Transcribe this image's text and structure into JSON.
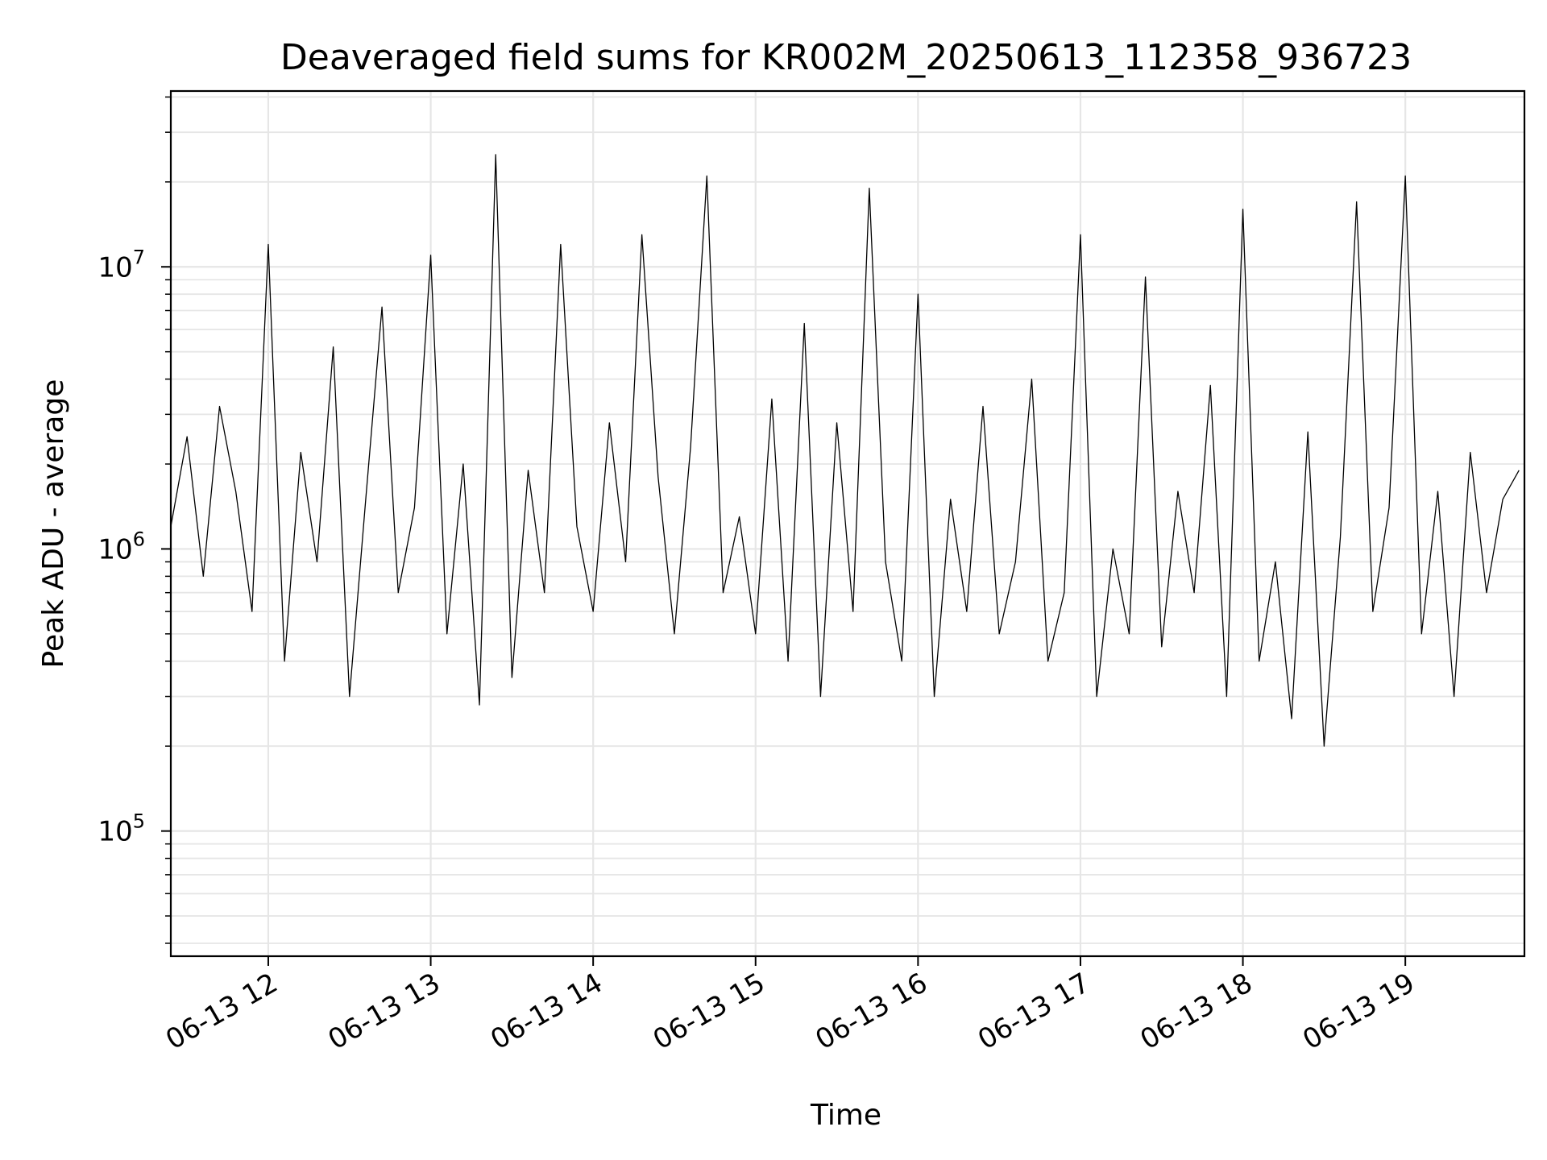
{
  "chart_data": {
    "type": "line",
    "title": "Deaveraged field sums for KR002M_20250613_112358_936723",
    "xlabel": "Time",
    "ylabel": "Peak ADU - average",
    "x_range": [
      "2025-06-13 11:24",
      "2025-06-13 19:44"
    ],
    "y_scale": "log",
    "ylim": [
      36000,
      42000000
    ],
    "x_ticks": [
      {
        "time": "2025-06-13 12:00",
        "label": "06-13 12"
      },
      {
        "time": "2025-06-13 13:00",
        "label": "06-13 13"
      },
      {
        "time": "2025-06-13 14:00",
        "label": "06-13 14"
      },
      {
        "time": "2025-06-13 15:00",
        "label": "06-13 15"
      },
      {
        "time": "2025-06-13 16:00",
        "label": "06-13 16"
      },
      {
        "time": "2025-06-13 17:00",
        "label": "06-13 17"
      },
      {
        "time": "2025-06-13 18:00",
        "label": "06-13 18"
      },
      {
        "time": "2025-06-13 19:00",
        "label": "06-13 19"
      }
    ],
    "y_ticks": [
      {
        "value": 100000,
        "base": "10",
        "exp": "5"
      },
      {
        "value": 1000000,
        "base": "10",
        "exp": "6"
      },
      {
        "value": 10000000,
        "base": "10",
        "exp": "7"
      }
    ],
    "grid": true,
    "line_color": "#000000",
    "grid_color": "#e6e6e6",
    "series": [
      {
        "x": [
          "2025-06-13 11:24",
          "2025-06-13 11:30",
          "2025-06-13 11:36",
          "2025-06-13 11:42",
          "2025-06-13 11:48",
          "2025-06-13 11:54",
          "2025-06-13 12:00",
          "2025-06-13 12:06",
          "2025-06-13 12:12",
          "2025-06-13 12:18",
          "2025-06-13 12:24",
          "2025-06-13 12:30",
          "2025-06-13 12:36",
          "2025-06-13 12:42",
          "2025-06-13 12:48",
          "2025-06-13 12:54",
          "2025-06-13 13:00",
          "2025-06-13 13:06",
          "2025-06-13 13:12",
          "2025-06-13 13:18",
          "2025-06-13 13:24",
          "2025-06-13 13:30",
          "2025-06-13 13:36",
          "2025-06-13 13:42",
          "2025-06-13 13:48",
          "2025-06-13 13:54",
          "2025-06-13 14:00",
          "2025-06-13 14:06",
          "2025-06-13 14:12",
          "2025-06-13 14:18",
          "2025-06-13 14:24",
          "2025-06-13 14:30",
          "2025-06-13 14:36",
          "2025-06-13 14:42",
          "2025-06-13 14:48",
          "2025-06-13 14:54",
          "2025-06-13 15:00",
          "2025-06-13 15:06",
          "2025-06-13 15:12",
          "2025-06-13 15:18",
          "2025-06-13 15:24",
          "2025-06-13 15:30",
          "2025-06-13 15:36",
          "2025-06-13 15:42",
          "2025-06-13 15:48",
          "2025-06-13 15:54",
          "2025-06-13 16:00",
          "2025-06-13 16:06",
          "2025-06-13 16:12",
          "2025-06-13 16:18",
          "2025-06-13 16:24",
          "2025-06-13 16:30",
          "2025-06-13 16:36",
          "2025-06-13 16:42",
          "2025-06-13 16:48",
          "2025-06-13 16:54",
          "2025-06-13 17:00",
          "2025-06-13 17:06",
          "2025-06-13 17:12",
          "2025-06-13 17:18",
          "2025-06-13 17:24",
          "2025-06-13 17:30",
          "2025-06-13 17:36",
          "2025-06-13 17:42",
          "2025-06-13 17:48",
          "2025-06-13 17:54",
          "2025-06-13 18:00",
          "2025-06-13 18:06",
          "2025-06-13 18:12",
          "2025-06-13 18:18",
          "2025-06-13 18:24",
          "2025-06-13 18:30",
          "2025-06-13 18:36",
          "2025-06-13 18:42",
          "2025-06-13 18:48",
          "2025-06-13 18:54",
          "2025-06-13 19:00",
          "2025-06-13 19:06",
          "2025-06-13 19:12",
          "2025-06-13 19:18",
          "2025-06-13 19:24",
          "2025-06-13 19:30",
          "2025-06-13 19:36",
          "2025-06-13 19:42"
        ],
        "y": [
          1200000,
          2500000,
          800000,
          3200000,
          1600000,
          600000,
          12000000,
          400000,
          2200000,
          900000,
          5200000,
          300000,
          1500000,
          7200000,
          700000,
          1400000,
          11000000,
          500000,
          2000000,
          280000,
          25000000,
          350000,
          1900000,
          700000,
          12000000,
          1200000,
          600000,
          2800000,
          900000,
          13000000,
          1800000,
          500000,
          2300000,
          21000000,
          700000,
          1300000,
          500000,
          3400000,
          400000,
          6300000,
          300000,
          2800000,
          600000,
          19000000,
          900000,
          400000,
          8000000,
          300000,
          1500000,
          600000,
          3200000,
          500000,
          900000,
          4000000,
          400000,
          700000,
          13000000,
          300000,
          1000000,
          500000,
          9200000,
          450000,
          1600000,
          700000,
          3800000,
          300000,
          16000000,
          400000,
          900000,
          250000,
          2600000,
          200000,
          1100000,
          17000000,
          600000,
          1400000,
          21000000,
          500000,
          1600000,
          300000,
          2200000,
          700000,
          1500000,
          1900000
        ]
      }
    ]
  }
}
